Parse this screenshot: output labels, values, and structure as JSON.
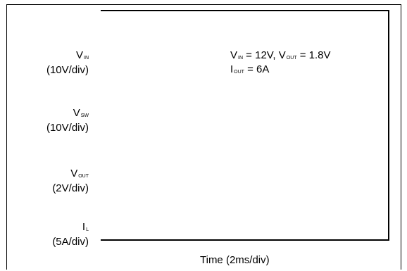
{
  "channels": [
    {
      "symbol": "V",
      "subscript": "IN",
      "scale": "(10V/div)"
    },
    {
      "symbol": "V",
      "subscript": "SW",
      "scale": "(10V/div)"
    },
    {
      "symbol": "V",
      "subscript": "OUT",
      "scale": "(2V/div)"
    },
    {
      "symbol": "I",
      "subscript": "L",
      "scale": "(5A/div)"
    }
  ],
  "conditions": {
    "line1": {
      "vin_symbol": "V",
      "vin_sub": "IN",
      "vin_value": " = 12V, ",
      "vout_symbol": "V",
      "vout_sub": "OUT",
      "vout_value": " = 1.8V"
    },
    "line2": {
      "iout_symbol": "I",
      "iout_sub": "OUT",
      "iout_value": " = 6A"
    }
  },
  "time_axis": {
    "label": "Time (2ms/div)"
  }
}
